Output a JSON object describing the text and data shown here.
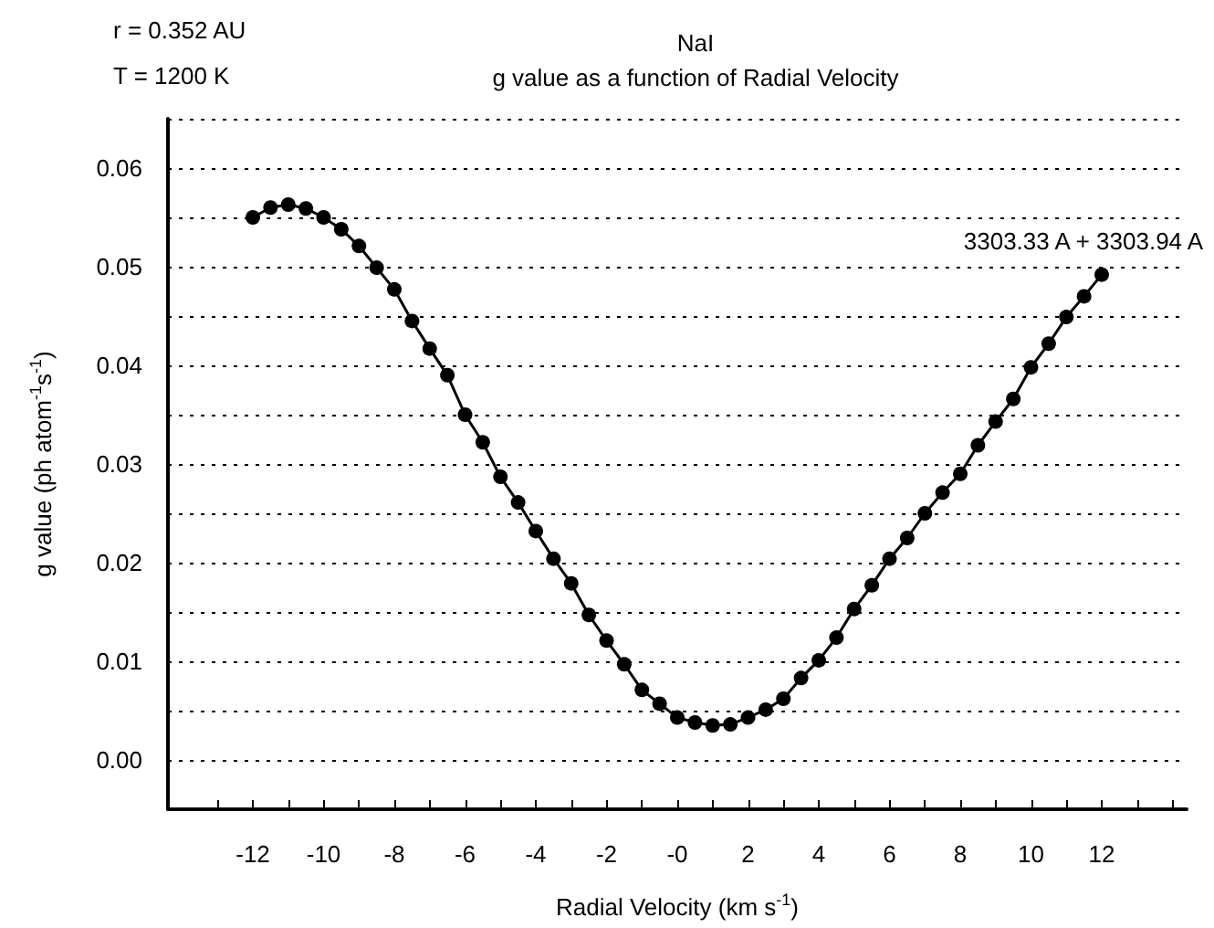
{
  "chart_data": {
    "type": "line",
    "title": "NaI",
    "subtitle": "g value as a function of Radial Velocity",
    "xlabel": "Radial Velocity (km s$^{-1}$)",
    "ylabel": "g value (ph atom$^{-1}$s$^{-1}$)",
    "annotations": [
      "r = 0.352 AU",
      "T = 1200 K"
    ],
    "x": [
      -12,
      -11.5,
      -11,
      -10.5,
      -10,
      -9.5,
      -9,
      -8.5,
      -8,
      -7.5,
      -7,
      -6.5,
      -6,
      -5.5,
      -5,
      -4.5,
      -4,
      -3.5,
      -3,
      -2.5,
      -2,
      -1.5,
      -1,
      -0.5,
      0,
      0.5,
      1,
      1.5,
      2,
      2.5,
      3,
      3.5,
      4,
      4.5,
      5,
      5.5,
      6,
      6.5,
      7,
      7.5,
      8,
      8.5,
      9,
      9.5,
      10,
      10.5,
      11,
      11.5,
      12
    ],
    "series": [
      {
        "name": "3303.33 A + 3303.94 A",
        "color": "#000000",
        "values": [
          0.055,
          0.056,
          0.0563,
          0.0559,
          0.055,
          0.0538,
          0.0521,
          0.0499,
          0.0477,
          0.0445,
          0.0417,
          0.039,
          0.035,
          0.0322,
          0.0287,
          0.0261,
          0.0232,
          0.0204,
          0.0179,
          0.0147,
          0.0121,
          0.0097,
          0.0071,
          0.0057,
          0.0043,
          0.0038,
          0.0035,
          0.0036,
          0.0043,
          0.0051,
          0.0062,
          0.0083,
          0.0101,
          0.0124,
          0.0153,
          0.0177,
          0.0204,
          0.0225,
          0.025,
          0.0271,
          0.029,
          0.0319,
          0.0343,
          0.0366,
          0.0398,
          0.0422,
          0.0449,
          0.047,
          0.0492
        ]
      }
    ],
    "xlim": [
      -14.4,
      14.4
    ],
    "xticks": [
      {
        "value": -13,
        "label": null
      },
      {
        "value": -12,
        "label": "-12"
      },
      {
        "value": -11,
        "label": null
      },
      {
        "value": -10,
        "label": "-10"
      },
      {
        "value": -9,
        "label": null
      },
      {
        "value": -8,
        "label": "-8"
      },
      {
        "value": -7,
        "label": null
      },
      {
        "value": -6,
        "label": "-6"
      },
      {
        "value": -5,
        "label": null
      },
      {
        "value": -4,
        "label": "-4"
      },
      {
        "value": -3,
        "label": null
      },
      {
        "value": -2,
        "label": "-2"
      },
      {
        "value": -1,
        "label": null
      },
      {
        "value": 0,
        "label": "-0"
      },
      {
        "value": 1,
        "label": null
      },
      {
        "value": 2,
        "label": "2"
      },
      {
        "value": 3,
        "label": null
      },
      {
        "value": 4,
        "label": "4"
      },
      {
        "value": 5,
        "label": null
      },
      {
        "value": 6,
        "label": "6"
      },
      {
        "value": 7,
        "label": null
      },
      {
        "value": 8,
        "label": "8"
      },
      {
        "value": 9,
        "label": null
      },
      {
        "value": 10,
        "label": "10"
      },
      {
        "value": 11,
        "label": null
      },
      {
        "value": 12,
        "label": "12"
      },
      {
        "value": 13,
        "label": null
      },
      {
        "value": 14,
        "label": null
      }
    ],
    "ylim": [
      -0.005,
      0.065
    ],
    "yticks": [
      {
        "value": 0,
        "label": "0.00"
      },
      {
        "value": 0.005,
        "label": null
      },
      {
        "value": 0.01,
        "label": "0.01"
      },
      {
        "value": 0.015,
        "label": null
      },
      {
        "value": 0.02,
        "label": "0.02"
      },
      {
        "value": 0.025,
        "label": null
      },
      {
        "value": 0.03,
        "label": "0.03"
      },
      {
        "value": 0.035,
        "label": null
      },
      {
        "value": 0.04,
        "label": "0.04"
      },
      {
        "value": 0.045,
        "label": null
      },
      {
        "value": 0.05,
        "label": "0.05"
      },
      {
        "value": 0.055,
        "label": null
      },
      {
        "value": 0.06,
        "label": "0.06"
      },
      {
        "value": 0.065,
        "label": null
      }
    ],
    "grid": "y",
    "legend": false,
    "marker": "circle",
    "line_style": "solid"
  }
}
